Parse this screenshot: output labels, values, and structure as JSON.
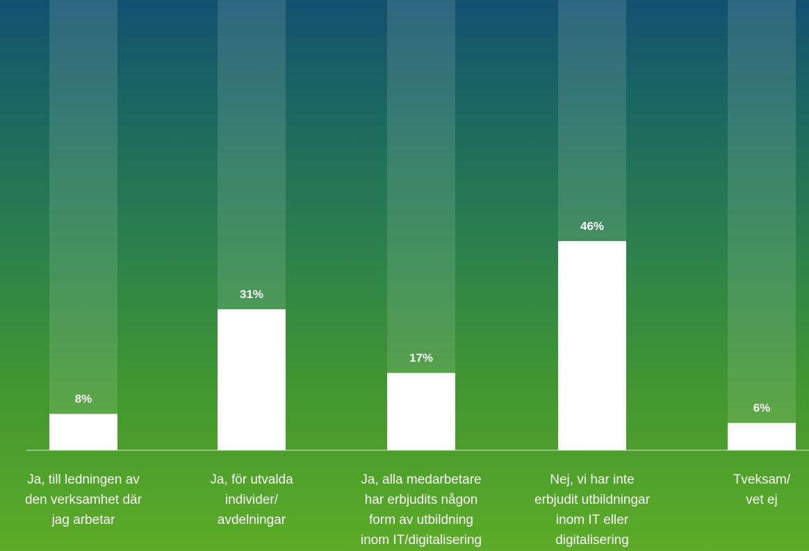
{
  "chart_data": {
    "type": "bar",
    "categories": [
      "Ja, till ledningen av\nden verksamhet där\njag arbetar",
      "Ja, för utvalda\nindivider/\navdelningar",
      "Ja, alla medarbetare\nhar erbjudits någon\nform av utbildning\ninom IT/digitalisering",
      "Nej, vi har inte\nerbjudit utbildningar\ninom IT eller\ndigitalisering",
      "Tveksam/\nvet ej"
    ],
    "values": [
      8,
      31,
      17,
      46,
      6
    ],
    "value_labels": [
      "8%",
      "31%",
      "17%",
      "46%",
      "6%"
    ],
    "unit": "%",
    "ylim": [
      0,
      100
    ],
    "title": "",
    "xlabel": "",
    "ylabel": "",
    "grid": false,
    "legend": "none",
    "colors": {
      "bar": "#ffffff",
      "track": "rgba(255,255,255,0.12)",
      "background_top": "#125170",
      "background_bottom": "#5cab27"
    }
  }
}
